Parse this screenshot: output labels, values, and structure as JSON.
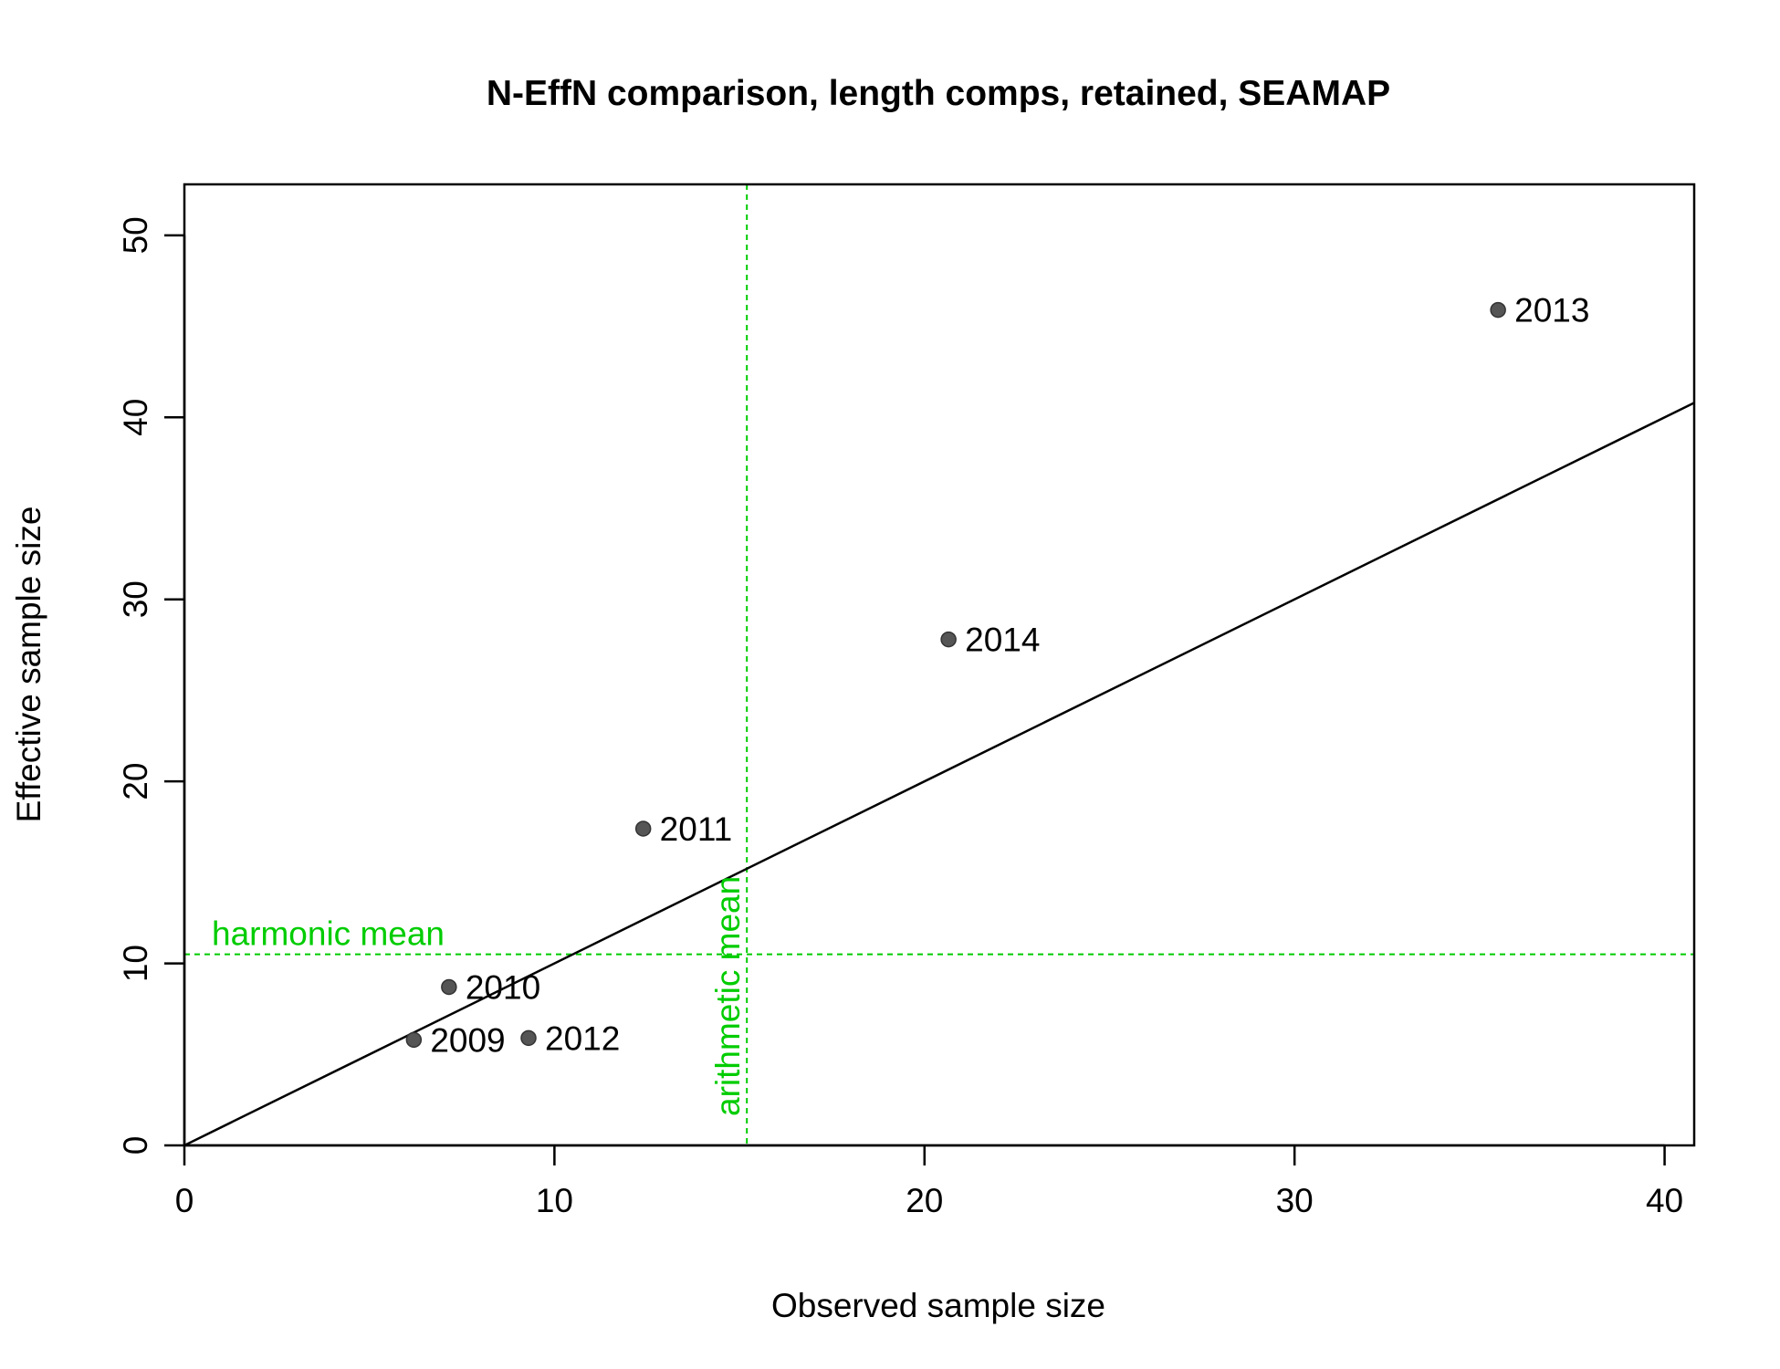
{
  "chart_data": {
    "type": "scatter",
    "title": "N-EffN comparison, length comps, retained, SEAMAP",
    "xlabel": "Observed sample size",
    "ylabel": "Effective sample size",
    "xlim": [
      0,
      40.8
    ],
    "ylim": [
      0,
      52.8
    ],
    "xticks": [
      0,
      10,
      20,
      30,
      40
    ],
    "yticks": [
      0,
      10,
      20,
      30,
      40,
      50
    ],
    "grid": false,
    "points": [
      {
        "label": "2009",
        "x": 6.2,
        "y": 5.8
      },
      {
        "label": "2010",
        "x": 7.15,
        "y": 8.7
      },
      {
        "label": "2011",
        "x": 12.4,
        "y": 17.4
      },
      {
        "label": "2012",
        "x": 9.3,
        "y": 5.9
      },
      {
        "label": "2013",
        "x": 35.5,
        "y": 45.9
      },
      {
        "label": "2014",
        "x": 20.65,
        "y": 27.8
      }
    ],
    "reference_line": {
      "slope": 1,
      "intercept": 0
    },
    "harmonic_mean": {
      "label": "harmonic mean",
      "value": 10.5,
      "color": "#00cc00"
    },
    "arithmetic_mean": {
      "label": "arithmetic mean",
      "value": 15.2,
      "color": "#00cc00"
    },
    "point_color": "#555555"
  }
}
